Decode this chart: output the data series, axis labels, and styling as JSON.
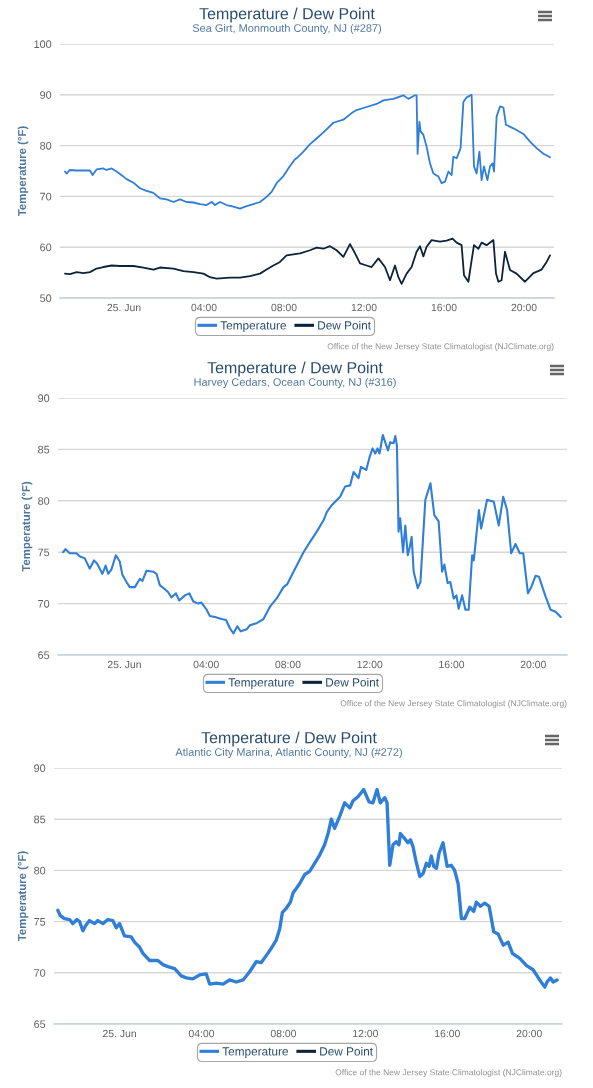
{
  "chart_data": [
    {
      "type": "line",
      "title": "Temperature / Dew Point",
      "subtitle": "Sea Girt, Monmouth County, NJ (#287)",
      "ylabel": "Temperature (°F)",
      "xlim": [
        -3.2,
        21.5
      ],
      "xticks": [
        {
          "value": 0,
          "label": "25. Jun"
        },
        {
          "value": 4,
          "label": "04:00"
        },
        {
          "value": 8,
          "label": "08:00"
        },
        {
          "value": 12,
          "label": "12:00"
        },
        {
          "value": 16,
          "label": "16:00"
        },
        {
          "value": 20,
          "label": "20:00"
        }
      ],
      "ylim": [
        50,
        100
      ],
      "yticks": [
        50,
        60,
        70,
        80,
        90,
        100
      ],
      "grid": "y",
      "legend": "bottom",
      "line_style": "solid",
      "annotations": [
        "Office of the New Jersey State Climatologist (NJClimate.org)"
      ],
      "series": [
        {
          "name": "Temperature",
          "color": "#2f7ed8",
          "x": [
            -2.95,
            -2.87,
            -2.7,
            -2.37,
            -1.7,
            -1.57,
            -1.37,
            -1.03,
            -0.87,
            -0.62,
            -0.37,
            -0.03,
            0.13,
            0.47,
            0.8,
            1.13,
            1.47,
            1.8,
            2.13,
            2.47,
            2.8,
            3.13,
            3.47,
            3.8,
            4.13,
            4.38,
            4.55,
            4.8,
            5.13,
            5.47,
            5.8,
            6.13,
            6.47,
            6.8,
            7.13,
            7.38,
            7.63,
            7.97,
            8.3,
            8.55,
            8.63,
            8.97,
            9.3,
            9.63,
            9.97,
            10.47,
            10.97,
            11.38,
            11.63,
            12.13,
            12.63,
            12.97,
            13.47,
            13.97,
            14.22,
            14.55,
            14.63,
            14.68,
            14.77,
            14.83,
            14.97,
            15.13,
            15.3,
            15.47,
            15.72,
            15.88,
            16.05,
            16.22,
            16.38,
            16.47,
            16.63,
            16.83,
            16.97,
            17.13,
            17.38,
            17.5,
            17.63,
            17.77,
            17.88,
            18.0,
            18.17,
            18.3,
            18.43,
            18.5,
            18.63,
            18.8,
            18.97,
            19.1,
            19.47,
            19.97,
            20.3,
            20.63,
            20.97,
            21.3
          ],
          "values": [
            74.9,
            74.5,
            75.2,
            75.1,
            75.1,
            74.2,
            75.3,
            75.5,
            75.2,
            75.5,
            74.9,
            73.9,
            73.4,
            72.7,
            71.6,
            71.1,
            70.7,
            69.6,
            69.4,
            68.9,
            69.4,
            68.9,
            68.8,
            68.5,
            68.3,
            68.9,
            68.3,
            68.9,
            68.3,
            68.0,
            67.6,
            68.1,
            68.5,
            68.9,
            69.9,
            70.9,
            72.6,
            74.0,
            76.0,
            77.3,
            77.5,
            78.8,
            80.3,
            81.4,
            82.6,
            84.5,
            85.1,
            86.4,
            87.0,
            87.6,
            88.2,
            88.9,
            89.2,
            89.9,
            89.2,
            89.9,
            89.9,
            78.4,
            84.7,
            82.8,
            82.1,
            79.8,
            76.5,
            74.5,
            73.9,
            72.6,
            72.9,
            74.9,
            74.2,
            77.8,
            77.5,
            79.5,
            88.6,
            89.5,
            90.0,
            75.9,
            74.5,
            78.8,
            73.2,
            75.9,
            73.2,
            75.9,
            76.5,
            74.9,
            85.7,
            87.7,
            87.5,
            84.1,
            83.4,
            82.3,
            80.8,
            79.5,
            78.4,
            77.7
          ]
        },
        {
          "name": "Dew Point",
          "color": "#0d233a",
          "x": [
            -2.95,
            -2.7,
            -2.37,
            -2.03,
            -1.7,
            -1.37,
            -1.03,
            -0.62,
            -0.2,
            0.47,
            0.97,
            1.47,
            1.8,
            2.47,
            2.97,
            3.47,
            3.97,
            4.3,
            4.63,
            5.3,
            5.8,
            6.3,
            6.8,
            7.13,
            7.47,
            7.8,
            8.13,
            8.47,
            8.8,
            9.3,
            9.63,
            9.97,
            10.3,
            10.63,
            10.97,
            11.3,
            11.55,
            11.8,
            12.13,
            12.38,
            12.72,
            13.05,
            13.3,
            13.55,
            13.72,
            13.88,
            14.13,
            14.38,
            14.63,
            14.8,
            14.97,
            15.13,
            15.38,
            15.8,
            16.13,
            16.43,
            16.63,
            16.88,
            17.0,
            17.22,
            17.38,
            17.5,
            17.72,
            17.88,
            18.13,
            18.47,
            18.6,
            18.72,
            18.88,
            19.05,
            19.3,
            19.63,
            20.05,
            20.47,
            20.88,
            21.13,
            21.3
          ],
          "values": [
            54.8,
            54.7,
            55.1,
            54.9,
            55.1,
            55.8,
            56.1,
            56.4,
            56.3,
            56.3,
            56.0,
            55.6,
            56.0,
            55.8,
            55.3,
            55.1,
            54.8,
            54.1,
            53.8,
            54.0,
            54.0,
            54.3,
            54.8,
            55.6,
            56.4,
            57.1,
            58.4,
            58.6,
            58.8,
            59.4,
            59.9,
            59.7,
            60.2,
            59.4,
            58.1,
            60.6,
            58.8,
            56.8,
            56.4,
            56.1,
            57.8,
            56.1,
            53.5,
            56.4,
            54.1,
            52.8,
            54.8,
            56.1,
            59.1,
            60.2,
            58.2,
            60.1,
            61.4,
            61.1,
            61.3,
            61.7,
            60.9,
            60.4,
            54.5,
            53.2,
            57.4,
            60.4,
            59.7,
            60.9,
            60.4,
            61.4,
            54.8,
            53.2,
            53.5,
            59.1,
            55.5,
            54.8,
            53.2,
            54.9,
            55.6,
            57.1,
            58.4
          ]
        }
      ]
    },
    {
      "type": "line",
      "title": "Temperature / Dew Point",
      "subtitle": "Harvey Cedars, Ocean County, NJ (#316)",
      "ylabel": "Temperature (°F)",
      "xlim": [
        -3.25,
        21.65
      ],
      "xticks": [
        {
          "value": 0,
          "label": "25. Jun"
        },
        {
          "value": 4,
          "label": "04:00"
        },
        {
          "value": 8,
          "label": "08:00"
        },
        {
          "value": 12,
          "label": "12:00"
        },
        {
          "value": 16,
          "label": "16:00"
        },
        {
          "value": 20,
          "label": "20:00"
        }
      ],
      "ylim": [
        65,
        90
      ],
      "yticks": [
        65,
        70,
        75,
        80,
        85,
        90
      ],
      "grid": "y",
      "legend": "bottom",
      "line_style": "solid",
      "annotations": [
        "Office of the New Jersey State Climatologist (NJClimate.org)"
      ],
      "series": [
        {
          "name": "Temperature",
          "color": "#2f7ed8",
          "x": [
            -3.0,
            -2.88,
            -2.68,
            -2.35,
            -2.19,
            -1.94,
            -1.7,
            -1.49,
            -1.34,
            -1.08,
            -0.92,
            -0.8,
            -0.64,
            -0.42,
            -0.23,
            -0.1,
            0.1,
            0.26,
            0.51,
            0.75,
            0.88,
            1.08,
            1.41,
            1.57,
            1.73,
            1.98,
            2.14,
            2.3,
            2.52,
            2.68,
            2.96,
            3.17,
            3.37,
            3.61,
            3.77,
            4.02,
            4.18,
            4.43,
            4.75,
            4.97,
            5.16,
            5.33,
            5.52,
            5.69,
            5.98,
            6.14,
            6.47,
            6.8,
            7.12,
            7.45,
            7.78,
            7.97,
            8.27,
            8.43,
            8.76,
            9.08,
            9.41,
            9.74,
            9.9,
            10.15,
            10.55,
            10.8,
            11.04,
            11.21,
            11.45,
            11.57,
            11.83,
            12.0,
            12.14,
            12.27,
            12.38,
            12.48,
            12.64,
            12.89,
            13.0,
            13.17,
            13.25,
            13.33,
            13.41,
            13.49,
            13.63,
            13.74,
            13.86,
            13.96,
            14.05,
            14.15,
            14.35,
            14.48,
            14.72,
            14.97,
            15.16,
            15.37,
            15.54,
            15.65,
            15.81,
            15.94,
            16.11,
            16.24,
            16.35,
            16.52,
            16.68,
            16.84,
            17.01,
            17.09,
            17.34,
            17.45,
            17.74,
            18.07,
            18.31,
            18.53,
            18.72,
            18.92,
            19.13,
            19.34,
            19.51,
            19.74,
            19.9,
            20.11,
            20.28,
            20.6,
            20.85,
            21.09,
            21.34
          ],
          "values": [
            75.0,
            75.3,
            74.9,
            74.9,
            74.6,
            74.4,
            73.4,
            74.2,
            73.9,
            72.9,
            73.7,
            72.9,
            73.3,
            74.7,
            74.1,
            72.8,
            72.1,
            71.6,
            71.6,
            72.4,
            72.2,
            73.2,
            73.1,
            72.9,
            71.8,
            71.4,
            71.1,
            70.6,
            71.0,
            70.3,
            70.8,
            71.0,
            70.2,
            70.0,
            70.1,
            69.4,
            68.8,
            68.7,
            68.5,
            68.4,
            67.6,
            67.1,
            67.8,
            67.3,
            67.5,
            67.9,
            68.1,
            68.5,
            69.7,
            70.5,
            71.6,
            71.9,
            73.1,
            73.7,
            75.0,
            76.0,
            77.0,
            78.1,
            78.9,
            79.6,
            80.4,
            81.4,
            81.5,
            82.8,
            82.2,
            83.3,
            83.0,
            84.3,
            85.1,
            84.6,
            85.1,
            84.6,
            86.4,
            84.9,
            85.7,
            85.6,
            86.3,
            85.4,
            77.0,
            78.3,
            75.0,
            77.6,
            74.7,
            75.5,
            76.5,
            73.1,
            71.5,
            72.1,
            80.1,
            81.7,
            78.6,
            78.0,
            73.1,
            73.8,
            72.0,
            72.1,
            70.5,
            70.8,
            69.5,
            70.8,
            69.4,
            69.4,
            74.7,
            74.2,
            79.1,
            77.3,
            80.1,
            79.9,
            77.6,
            80.4,
            79.1,
            74.9,
            75.8,
            74.9,
            74.9,
            71.0,
            71.6,
            72.7,
            72.6,
            70.7,
            69.4,
            69.2,
            68.7
          ]
        },
        {
          "name": "Dew Point",
          "color": "#0d233a"
        }
      ]
    },
    {
      "type": "line",
      "title": "Temperature / Dew Point",
      "subtitle": "Atlantic City Marina, Atlantic County, NJ (#272)",
      "ylabel": "Temperature (°F)",
      "xlim": [
        -3.2,
        21.6
      ],
      "xticks": [
        {
          "value": 0,
          "label": "25. Jun"
        },
        {
          "value": 4,
          "label": "04:00"
        },
        {
          "value": 8,
          "label": "08:00"
        },
        {
          "value": 12,
          "label": "12:00"
        },
        {
          "value": 16,
          "label": "16:00"
        },
        {
          "value": 20,
          "label": "20:00"
        }
      ],
      "ylim": [
        65,
        90
      ],
      "yticks": [
        65,
        70,
        75,
        80,
        85,
        90
      ],
      "grid": "y",
      "legend": "bottom",
      "line_style": "solid",
      "annotations": [
        "Office of the New Jersey State Climatologist (NJClimate.org)"
      ],
      "series": [
        {
          "name": "Temperature",
          "color": "#2f7ed8",
          "x": [
            -3.01,
            -2.9,
            -2.69,
            -2.44,
            -2.28,
            -2.08,
            -1.95,
            -1.79,
            -1.66,
            -1.47,
            -1.22,
            -1.06,
            -0.81,
            -0.57,
            -0.33,
            -0.16,
            0.0,
            0.24,
            0.57,
            0.73,
            0.98,
            1.14,
            1.47,
            1.87,
            2.12,
            2.36,
            2.69,
            3.01,
            3.26,
            3.58,
            3.91,
            4.23,
            4.4,
            4.72,
            5.05,
            5.37,
            5.7,
            6.03,
            6.35,
            6.68,
            6.92,
            7.17,
            7.41,
            7.65,
            7.82,
            7.95,
            8.14,
            8.34,
            8.47,
            8.79,
            9.04,
            9.28,
            9.53,
            9.77,
            10.01,
            10.18,
            10.34,
            10.5,
            10.75,
            10.99,
            11.24,
            11.4,
            11.64,
            11.92,
            12.18,
            12.37,
            12.57,
            12.73,
            12.95,
            13.06,
            13.19,
            13.35,
            13.51,
            13.64,
            13.71,
            13.92,
            14.08,
            14.2,
            14.33,
            14.46,
            14.66,
            14.82,
            14.98,
            15.11,
            15.22,
            15.34,
            15.47,
            15.6,
            15.79,
            15.99,
            16.2,
            16.36,
            16.53,
            16.69,
            16.85,
            17.1,
            17.29,
            17.42,
            17.62,
            17.83,
            18.04,
            18.27,
            18.48,
            18.73,
            18.97,
            19.18,
            19.54,
            19.87,
            20.19,
            20.48,
            20.76,
            20.87,
            21.04,
            21.17,
            21.36
          ],
          "values": [
            76.1,
            75.6,
            75.3,
            75.2,
            74.8,
            75.2,
            75.0,
            74.1,
            74.6,
            75.1,
            74.8,
            75.1,
            74.8,
            75.2,
            75.1,
            74.4,
            74.8,
            73.6,
            73.5,
            73.0,
            72.5,
            71.9,
            71.2,
            71.2,
            70.8,
            70.6,
            70.4,
            69.7,
            69.5,
            69.4,
            69.8,
            69.9,
            68.9,
            69.0,
            68.9,
            69.3,
            69.1,
            69.3,
            70.1,
            71.1,
            71.0,
            71.7,
            72.4,
            73.2,
            74.3,
            75.9,
            76.3,
            76.9,
            77.8,
            78.7,
            79.6,
            79.9,
            80.7,
            81.5,
            82.5,
            83.6,
            85.0,
            84.1,
            85.3,
            86.6,
            86.1,
            86.8,
            87.2,
            87.9,
            86.7,
            86.6,
            87.9,
            86.6,
            87.1,
            86.6,
            80.5,
            82.5,
            82.8,
            82.5,
            83.6,
            83.1,
            82.7,
            83.0,
            82.3,
            81.0,
            79.4,
            79.7,
            80.7,
            80.4,
            81.4,
            80.4,
            80.2,
            81.7,
            82.7,
            80.4,
            80.5,
            80.0,
            78.7,
            75.3,
            75.3,
            76.4,
            76.0,
            76.9,
            76.5,
            76.8,
            76.5,
            74.0,
            73.8,
            72.7,
            73.0,
            71.9,
            71.4,
            70.7,
            70.3,
            69.4,
            68.6,
            69.1,
            69.5,
            69.1,
            69.3
          ]
        },
        {
          "name": "Dew Point",
          "color": "#0d233a"
        }
      ]
    }
  ]
}
